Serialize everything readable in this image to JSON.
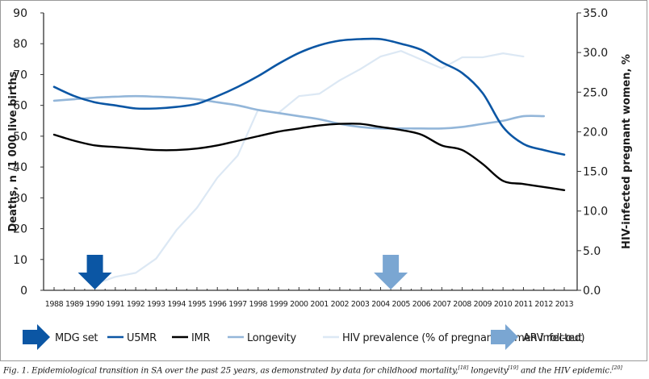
{
  "chart_data": {
    "type": "line",
    "title": "",
    "xlabel": "",
    "ylabel": "Deaths, n /1 000 live births",
    "y2label": "HIV-infected pregnant women, %",
    "ylim": [
      0,
      90
    ],
    "y2lim": [
      0,
      35
    ],
    "yticks": [
      "0",
      "10",
      "20",
      "30",
      "40",
      "50",
      "60",
      "70",
      "80",
      "90"
    ],
    "y2ticks": [
      "0.0",
      "5.0",
      "10.0",
      "15.0",
      "20.0",
      "25.0",
      "30.0",
      "35.0"
    ],
    "x": [
      1988,
      1989,
      1990,
      1991,
      1992,
      1993,
      1994,
      1995,
      1996,
      1997,
      1998,
      1999,
      2000,
      2001,
      2002,
      2003,
      2004,
      2005,
      2006,
      2007,
      2008,
      2009,
      2010,
      2011,
      2012,
      2013
    ],
    "xticks": [
      "1988",
      "1989",
      "1990",
      "1991",
      "1992",
      "1993",
      "1994",
      "1995",
      "1996",
      "1997",
      "1998",
      "1999",
      "2000",
      "2001",
      "2002",
      "2003",
      "2004",
      "2005",
      "2006",
      "2007",
      "2008",
      "2009",
      "2010",
      "2011",
      "2012",
      "2013"
    ],
    "grid": false,
    "legend_position": "bottom",
    "series": [
      {
        "name": "U5MR",
        "axis": "left",
        "color": "#0b56a4",
        "values": [
          66,
          63,
          61,
          60,
          59,
          59,
          59.5,
          60.5,
          63,
          66,
          69.5,
          73.5,
          77,
          79.5,
          81,
          81.5,
          81.5,
          80,
          78,
          74,
          70.5,
          64,
          53,
          47.5,
          45.5,
          44
        ]
      },
      {
        "name": "IMR",
        "axis": "left",
        "color": "#000000",
        "values": [
          50.5,
          48.5,
          47,
          46.5,
          46,
          45.5,
          45.5,
          46,
          47,
          48.5,
          50,
          51.5,
          52.5,
          53.5,
          54,
          54,
          53,
          52,
          50.5,
          47,
          45.5,
          41,
          35.5,
          34.5,
          33.5,
          32.5
        ]
      },
      {
        "name": "Longevity",
        "axis": "left",
        "color": "#93b6d9",
        "values": [
          61.5,
          62,
          62.5,
          62.8,
          63,
          62.8,
          62.5,
          62,
          61,
          60,
          58.5,
          57.5,
          56.5,
          55.5,
          54,
          53,
          52.5,
          52.5,
          52.5,
          52.5,
          53,
          54,
          55,
          56.5,
          56.5,
          null
        ]
      },
      {
        "name": "HIV prevalence (% of pregnant women infected)",
        "axis": "right",
        "color": "#dce8f4",
        "values": [
          null,
          null,
          0.8,
          1.7,
          2.2,
          4.0,
          7.6,
          10.4,
          14.2,
          17.0,
          22.8,
          22.4,
          24.5,
          24.8,
          26.5,
          27.9,
          29.5,
          30.2,
          29.1,
          28.0,
          29.4,
          29.4,
          29.9,
          29.5,
          null,
          null
        ]
      }
    ],
    "annotations": [
      {
        "name": "MDG set",
        "type": "down-arrow",
        "year": 1990.0,
        "color": "#0b56a4"
      },
      {
        "name": "ARV roll-out",
        "type": "down-arrow",
        "year": 2004.5,
        "color": "#7aa6d2"
      }
    ]
  },
  "legend": {
    "items": [
      {
        "label": "MDG set",
        "kind": "arrow",
        "color": "#0b56a4"
      },
      {
        "label": "U5MR",
        "kind": "line",
        "color": "#0b56a4"
      },
      {
        "label": "IMR",
        "kind": "line",
        "color": "#000000"
      },
      {
        "label": "Longevity",
        "kind": "line",
        "color": "#93b6d9"
      },
      {
        "label": "HIV prevalence (% of pregnant women infected)",
        "kind": "line",
        "color": "#dce8f4"
      },
      {
        "label": "ARV roll-out",
        "kind": "arrow",
        "color": "#7aa6d2"
      }
    ]
  },
  "caption": {
    "text_1": "Fig. 1. Epidemiological transition in SA over the past 25 years, as demonstrated by data for childhood mortality,",
    "ref_1": "[18]",
    "text_2": " longevity",
    "ref_2": "[19]",
    "text_3": " and the HIV epidemic.",
    "ref_3": "[20]"
  }
}
